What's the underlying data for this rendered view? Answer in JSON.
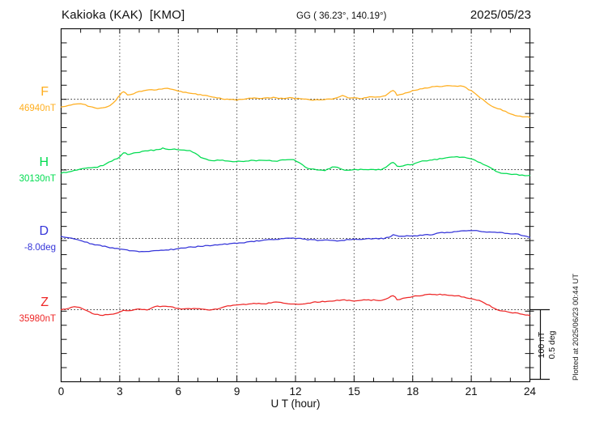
{
  "header": {
    "station": "Kakioka (KAK)  [KMO]",
    "coords": "GG ( 36.23°, 140.19°)",
    "date": "2025/05/23"
  },
  "plotted_at": "Plotted at 2025/06/23 00:44 UT",
  "chart_data": {
    "type": "line",
    "title": "Kakioka (KAK) [KMO] magnetogram 2025/05/23",
    "x_axis": {
      "label": "U T (hour)",
      "min": 0,
      "max": 24,
      "minor_tick_step_hours": 1,
      "major_tick_step_hours": 3,
      "tick_labels": [
        "0",
        "3",
        "6",
        "9",
        "12",
        "15",
        "18",
        "21",
        "24"
      ],
      "grid_hours": [
        3,
        6,
        9,
        12,
        15,
        18,
        21
      ],
      "grid_style": "dotted"
    },
    "scale": {
      "bar_label_nT": "100 nT",
      "bar_label_deg": "0.5 deg",
      "nT_per_division": 100,
      "deg_per_division": 0.5
    },
    "series": [
      {
        "name": "F",
        "unit": "nT",
        "baseline_value": 46940,
        "baseline_label": "46940nT",
        "color": "#FFAE1E",
        "points_hour_offset": [
          [
            0,
            -12
          ],
          [
            0.5,
            -8
          ],
          [
            1,
            -7
          ],
          [
            1.5,
            -11
          ],
          [
            2,
            -13
          ],
          [
            2.5,
            -9
          ],
          [
            2.8,
            -2
          ],
          [
            3,
            6
          ],
          [
            3.2,
            11
          ],
          [
            3.4,
            6
          ],
          [
            3.7,
            8
          ],
          [
            4,
            11
          ],
          [
            4.5,
            13
          ],
          [
            5,
            14
          ],
          [
            5.3,
            16
          ],
          [
            5.6,
            15
          ],
          [
            6,
            12
          ],
          [
            6.5,
            9
          ],
          [
            7,
            7
          ],
          [
            7.5,
            5
          ],
          [
            8,
            2
          ],
          [
            8.5,
            0
          ],
          [
            9,
            -1
          ],
          [
            9.5,
            1
          ],
          [
            10,
            2
          ],
          [
            10.3,
            1
          ],
          [
            10.6,
            2
          ],
          [
            11,
            2
          ],
          [
            11.4,
            1
          ],
          [
            11.7,
            2
          ],
          [
            12,
            1
          ],
          [
            12.4,
            0
          ],
          [
            12.8,
            -1
          ],
          [
            13.2,
            -1
          ],
          [
            13.6,
            0
          ],
          [
            14,
            1
          ],
          [
            14.4,
            5
          ],
          [
            14.7,
            2
          ],
          [
            15,
            2
          ],
          [
            15.4,
            1
          ],
          [
            15.8,
            3
          ],
          [
            16.2,
            3
          ],
          [
            16.6,
            5
          ],
          [
            17,
            13
          ],
          [
            17.2,
            6
          ],
          [
            17.5,
            8
          ],
          [
            18,
            12
          ],
          [
            18.5,
            15
          ],
          [
            19,
            18
          ],
          [
            19.5,
            19
          ],
          [
            20,
            19
          ],
          [
            20.3,
            19
          ],
          [
            20.6,
            18
          ],
          [
            21,
            12
          ],
          [
            21.3,
            6
          ],
          [
            21.6,
            -1
          ],
          [
            22,
            -9
          ],
          [
            22.5,
            -15
          ],
          [
            23,
            -21
          ],
          [
            23.5,
            -25
          ],
          [
            24,
            -26
          ]
        ]
      },
      {
        "name": "H",
        "unit": "nT",
        "baseline_value": 30130,
        "baseline_label": "30130nT",
        "color": "#00DC50",
        "points_hour_offset": [
          [
            0,
            -5
          ],
          [
            0.4,
            -3
          ],
          [
            0.8,
            0
          ],
          [
            1.1,
            2
          ],
          [
            1.4,
            3
          ],
          [
            1.7,
            3
          ],
          [
            2,
            5
          ],
          [
            2.3,
            8
          ],
          [
            2.6,
            13
          ],
          [
            3,
            18
          ],
          [
            3.2,
            25
          ],
          [
            3.4,
            22
          ],
          [
            3.6,
            23
          ],
          [
            3.8,
            24
          ],
          [
            4,
            25
          ],
          [
            4.3,
            27
          ],
          [
            4.6,
            28
          ],
          [
            5,
            29
          ],
          [
            5.2,
            31
          ],
          [
            5.5,
            29
          ],
          [
            5.8,
            30
          ],
          [
            6,
            29
          ],
          [
            6.3,
            28
          ],
          [
            6.6,
            27
          ],
          [
            7,
            21
          ],
          [
            7.3,
            16
          ],
          [
            7.7,
            13
          ],
          [
            8,
            14
          ],
          [
            8.4,
            13
          ],
          [
            8.8,
            12
          ],
          [
            9.2,
            12
          ],
          [
            9.6,
            13
          ],
          [
            10,
            13
          ],
          [
            10.4,
            14
          ],
          [
            10.8,
            13
          ],
          [
            11.2,
            13
          ],
          [
            11.6,
            15
          ],
          [
            11.9,
            14
          ],
          [
            12.2,
            10
          ],
          [
            12.5,
            4
          ],
          [
            12.8,
            1
          ],
          [
            13.1,
            0
          ],
          [
            13.5,
            -1
          ],
          [
            14,
            4
          ],
          [
            14.4,
            0
          ],
          [
            14.8,
            -1
          ],
          [
            15.2,
            0
          ],
          [
            15.6,
            0
          ],
          [
            16,
            0
          ],
          [
            16.5,
            1
          ],
          [
            17,
            11
          ],
          [
            17.2,
            5
          ],
          [
            17.5,
            6
          ],
          [
            18,
            8
          ],
          [
            18.5,
            12
          ],
          [
            19,
            14
          ],
          [
            19.5,
            16
          ],
          [
            20,
            18
          ],
          [
            20.4,
            18
          ],
          [
            20.8,
            17
          ],
          [
            21.2,
            13
          ],
          [
            21.6,
            8
          ],
          [
            22,
            2
          ],
          [
            22.4,
            -4
          ],
          [
            22.8,
            -6
          ],
          [
            23.2,
            -7
          ],
          [
            23.6,
            -8
          ],
          [
            24,
            -9
          ]
        ]
      },
      {
        "name": "D",
        "unit": "deg",
        "baseline_value": -8.0,
        "baseline_label": "-8.0deg",
        "color": "#3434D9",
        "points_hour_offset": [
          [
            0,
            0.012
          ],
          [
            0.4,
            0.006
          ],
          [
            0.8,
            -0.006
          ],
          [
            1.2,
            -0.024
          ],
          [
            1.6,
            -0.041
          ],
          [
            2,
            -0.053
          ],
          [
            2.5,
            -0.065
          ],
          [
            3,
            -0.076
          ],
          [
            3.5,
            -0.088
          ],
          [
            4,
            -0.094
          ],
          [
            4.5,
            -0.094
          ],
          [
            5,
            -0.088
          ],
          [
            5.5,
            -0.082
          ],
          [
            6,
            -0.076
          ],
          [
            6.5,
            -0.065
          ],
          [
            7,
            -0.059
          ],
          [
            7.5,
            -0.053
          ],
          [
            8,
            -0.047
          ],
          [
            8.5,
            -0.041
          ],
          [
            9,
            -0.035
          ],
          [
            9.5,
            -0.029
          ],
          [
            10,
            -0.018
          ],
          [
            10.5,
            -0.012
          ],
          [
            11,
            -0.006
          ],
          [
            11.5,
            0
          ],
          [
            12,
            0
          ],
          [
            12.5,
            -0.006
          ],
          [
            13,
            -0.012
          ],
          [
            13.5,
            -0.012
          ],
          [
            14,
            -0.018
          ],
          [
            14.5,
            -0.012
          ],
          [
            15,
            -0.006
          ],
          [
            15.5,
            -0.006
          ],
          [
            16,
            0
          ],
          [
            16.5,
            0
          ],
          [
            16.8,
            0.012
          ],
          [
            17,
            0.024
          ],
          [
            17.3,
            0.018
          ],
          [
            17.7,
            0.018
          ],
          [
            18,
            0.018
          ],
          [
            18.5,
            0.024
          ],
          [
            19,
            0.029
          ],
          [
            19.5,
            0.041
          ],
          [
            20,
            0.047
          ],
          [
            20.5,
            0.053
          ],
          [
            21,
            0.059
          ],
          [
            21.4,
            0.053
          ],
          [
            21.8,
            0.047
          ],
          [
            22.2,
            0.047
          ],
          [
            22.6,
            0.041
          ],
          [
            23,
            0.035
          ],
          [
            23.4,
            0.029
          ],
          [
            23.8,
            0.018
          ],
          [
            24,
            0.006
          ]
        ]
      },
      {
        "name": "Z",
        "unit": "nT",
        "baseline_value": 35980,
        "baseline_label": "35980nT",
        "color": "#EE2727",
        "points_hour_offset": [
          [
            0,
            0
          ],
          [
            0.4,
            2
          ],
          [
            0.8,
            4
          ],
          [
            1.2,
            0
          ],
          [
            1.6,
            -5
          ],
          [
            2,
            -8
          ],
          [
            2.4,
            -7
          ],
          [
            2.8,
            -5
          ],
          [
            3.2,
            -1
          ],
          [
            3.6,
            -1
          ],
          [
            4,
            1
          ],
          [
            4.4,
            0
          ],
          [
            4.8,
            4
          ],
          [
            5.2,
            5
          ],
          [
            5.6,
            4
          ],
          [
            6,
            2
          ],
          [
            6.4,
            1
          ],
          [
            6.8,
            2
          ],
          [
            7.2,
            1
          ],
          [
            7.6,
            0
          ],
          [
            8,
            1
          ],
          [
            8.4,
            5
          ],
          [
            8.8,
            6
          ],
          [
            9.2,
            7
          ],
          [
            9.6,
            8
          ],
          [
            10,
            9
          ],
          [
            10.5,
            9
          ],
          [
            11,
            11
          ],
          [
            11.5,
            9
          ],
          [
            12,
            8
          ],
          [
            12.5,
            9
          ],
          [
            13,
            11
          ],
          [
            13.5,
            12
          ],
          [
            14,
            13
          ],
          [
            14.5,
            14
          ],
          [
            15,
            13
          ],
          [
            15.5,
            14
          ],
          [
            16,
            14
          ],
          [
            16.5,
            14
          ],
          [
            17,
            20
          ],
          [
            17.2,
            15
          ],
          [
            17.5,
            16
          ],
          [
            18,
            19
          ],
          [
            18.5,
            21
          ],
          [
            19,
            22
          ],
          [
            19.4,
            22
          ],
          [
            20,
            21
          ],
          [
            20.5,
            19
          ],
          [
            21,
            16
          ],
          [
            21.4,
            13
          ],
          [
            21.8,
            8
          ],
          [
            22.2,
            2
          ],
          [
            22.6,
            -2
          ],
          [
            23,
            -4
          ],
          [
            23.5,
            -6
          ],
          [
            24,
            -8
          ]
        ]
      }
    ]
  }
}
